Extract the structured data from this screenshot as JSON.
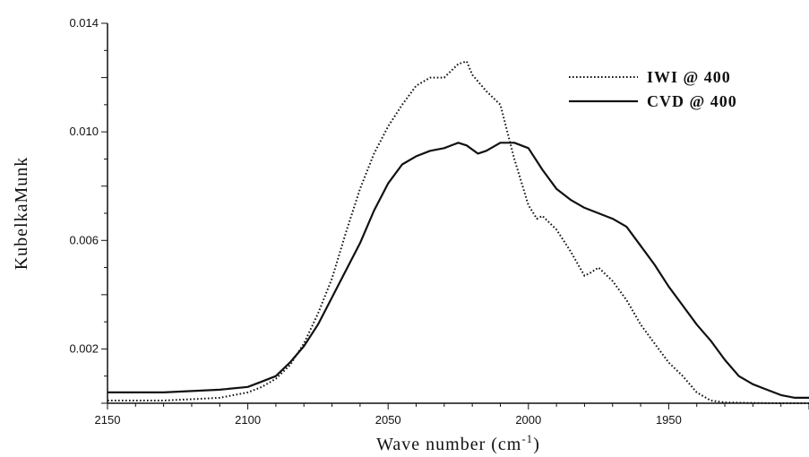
{
  "chart_data": {
    "type": "line",
    "xlabel": "Wave number (cm",
    "xlabel_superscript": "-1",
    "xlabel_suffix": ")",
    "ylabel": "KubelkaMunk",
    "xlim": [
      2150,
      1900
    ],
    "x_reversed": true,
    "ylim": [
      0,
      0.014
    ],
    "xticks": [
      2150,
      2100,
      2050,
      2000,
      1950
    ],
    "yticks": [
      "0.002",
      "0.006",
      "0.010",
      "0.014"
    ],
    "ytick_values": [
      0.002,
      0.006,
      0.01,
      0.014
    ],
    "grid": false,
    "legend_position": "top-right",
    "series": [
      {
        "name": "IWI   @ 400",
        "style": "dotted",
        "x": [
          2150,
          2140,
          2130,
          2120,
          2110,
          2100,
          2095,
          2090,
          2085,
          2080,
          2075,
          2070,
          2065,
          2060,
          2055,
          2050,
          2045,
          2040,
          2035,
          2030,
          2028,
          2025,
          2022,
          2020,
          2015,
          2010,
          2005,
          2000,
          1997,
          1995,
          1990,
          1985,
          1980,
          1978,
          1975,
          1970,
          1965,
          1960,
          1955,
          1950,
          1945,
          1940,
          1935,
          1930,
          1920,
          1910,
          1900
        ],
        "y": [
          0.0001,
          0.0001,
          0.0001,
          0.00015,
          0.0002,
          0.0004,
          0.0006,
          0.0009,
          0.0014,
          0.0022,
          0.0033,
          0.0046,
          0.0063,
          0.0079,
          0.0092,
          0.0102,
          0.011,
          0.0117,
          0.012,
          0.012,
          0.0122,
          0.0125,
          0.0126,
          0.0121,
          0.0115,
          0.011,
          0.009,
          0.0073,
          0.0068,
          0.0069,
          0.0064,
          0.0056,
          0.0047,
          0.0048,
          0.005,
          0.0045,
          0.0038,
          0.0029,
          0.0022,
          0.0015,
          0.001,
          0.0004,
          0.0001,
          3e-05,
          1e-05,
          0.0,
          0.0
        ]
      },
      {
        "name": "CVD @ 400",
        "style": "solid",
        "x": [
          2150,
          2140,
          2130,
          2120,
          2110,
          2100,
          2095,
          2090,
          2085,
          2080,
          2075,
          2070,
          2065,
          2060,
          2055,
          2050,
          2045,
          2040,
          2035,
          2030,
          2025,
          2022,
          2018,
          2015,
          2010,
          2005,
          2000,
          1995,
          1990,
          1985,
          1980,
          1975,
          1970,
          1965,
          1960,
          1955,
          1950,
          1945,
          1940,
          1935,
          1930,
          1925,
          1920,
          1915,
          1910,
          1905,
          1900
        ],
        "y": [
          0.0004,
          0.0004,
          0.0004,
          0.00045,
          0.0005,
          0.0006,
          0.0008,
          0.001,
          0.0015,
          0.0021,
          0.0029,
          0.0039,
          0.0049,
          0.0059,
          0.0071,
          0.0081,
          0.0088,
          0.0091,
          0.0093,
          0.0094,
          0.0096,
          0.0095,
          0.0092,
          0.0093,
          0.0096,
          0.0096,
          0.0094,
          0.0086,
          0.0079,
          0.0075,
          0.0072,
          0.007,
          0.0068,
          0.0065,
          0.0058,
          0.0051,
          0.0043,
          0.0036,
          0.0029,
          0.0023,
          0.0016,
          0.001,
          0.0007,
          0.0005,
          0.0003,
          0.0002,
          0.0002
        ]
      }
    ]
  }
}
